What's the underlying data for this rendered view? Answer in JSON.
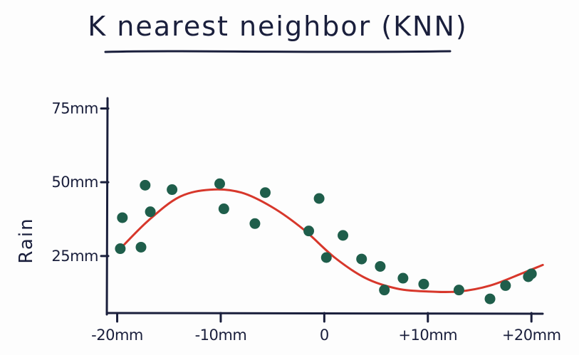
{
  "chart_data": {
    "type": "scatter",
    "title": "K nearest neighbor (KNN)",
    "xlabel": "",
    "ylabel": "Rain",
    "xlim": [
      -21,
      21.5
    ],
    "ylim": [
      5.7,
      78
    ],
    "grid": false,
    "legend": "none",
    "x_ticks": [
      {
        "value": -20,
        "label": "-20mm"
      },
      {
        "value": -10,
        "label": "-10mm"
      },
      {
        "value": 0,
        "label": "0"
      },
      {
        "value": 10,
        "label": "+10mm"
      },
      {
        "value": 20,
        "label": "+20mm"
      }
    ],
    "y_ticks": [
      {
        "value": 25,
        "label": "25mm"
      },
      {
        "value": 50,
        "label": "50mm"
      },
      {
        "value": 75,
        "label": "75mm"
      }
    ],
    "colors": {
      "points": "#1f5e4b",
      "curve": "#d7372b",
      "axes": "#1a1f3c"
    },
    "series": [
      {
        "kind": "points",
        "x": [
          -19.7,
          -19.5,
          -17.7,
          -17.3,
          -16.8,
          -14.7,
          -10.1,
          -9.7,
          -6.7,
          -5.7,
          -1.5,
          -0.5,
          0.2,
          1.8,
          3.6,
          5.4,
          5.8,
          7.6,
          9.6,
          13.0,
          16.0,
          17.5,
          19.7,
          20.0
        ],
        "y": [
          27.5,
          38.0,
          28.0,
          49.0,
          40.0,
          47.5,
          49.5,
          41.0,
          36.0,
          46.5,
          33.5,
          44.5,
          24.5,
          32.0,
          24.0,
          21.5,
          13.5,
          17.5,
          15.5,
          13.5,
          10.5,
          15.0,
          18.0,
          19.0
        ]
      },
      {
        "kind": "curve",
        "x": [
          -19.7,
          -17,
          -14,
          -11,
          -8,
          -5,
          -2,
          1,
          4,
          7,
          10,
          13,
          16,
          19,
          21.1
        ],
        "y": [
          27.5,
          37.0,
          45.0,
          47.5,
          46.5,
          41.5,
          34.0,
          24.5,
          17.5,
          14.0,
          13.0,
          13.0,
          15.0,
          19.0,
          22.0
        ]
      }
    ]
  }
}
